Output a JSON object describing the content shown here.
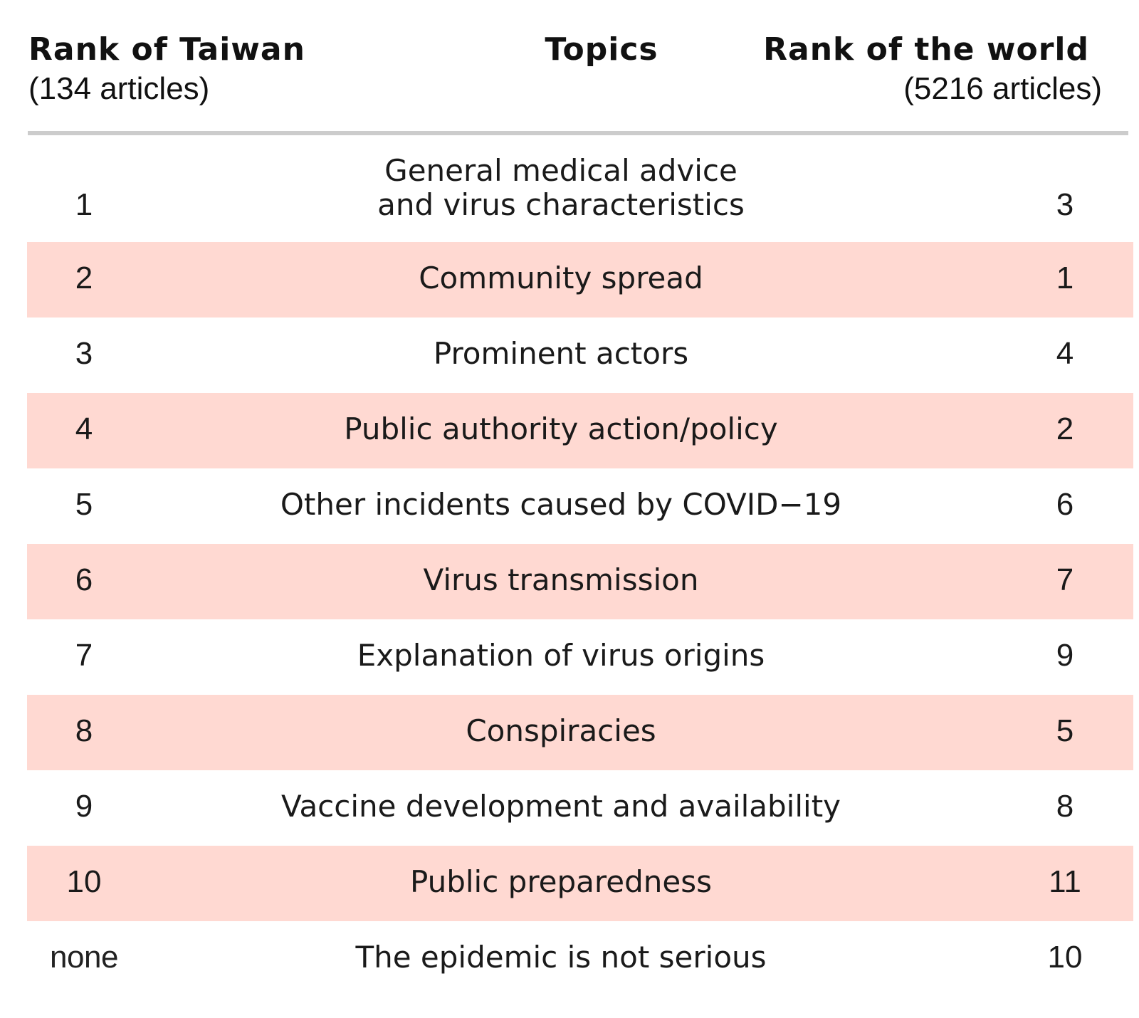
{
  "header": {
    "left_title": "Rank of Taiwan",
    "left_subtitle": "(134 articles)",
    "middle_title": "Topics",
    "right_title": "Rank of the world",
    "right_subtitle": "(5216 articles)"
  },
  "colors": {
    "shaded_row": "#ffd9d2",
    "divider": "#cccccc",
    "text": "#1a1a1a"
  },
  "chart_data": {
    "type": "table",
    "columns": [
      "Rank of Taiwan (134 articles)",
      "Topics",
      "Rank of the world (5216 articles)"
    ],
    "rows": [
      {
        "taiwan_rank": "1",
        "topic_lines": [
          "General medical advice",
          "and virus characteristics"
        ],
        "world_rank": "3"
      },
      {
        "taiwan_rank": "2",
        "topic_lines": [
          "Community spread"
        ],
        "world_rank": "1"
      },
      {
        "taiwan_rank": "3",
        "topic_lines": [
          "Prominent actors"
        ],
        "world_rank": "4"
      },
      {
        "taiwan_rank": "4",
        "topic_lines": [
          "Public authority action/policy"
        ],
        "world_rank": "2"
      },
      {
        "taiwan_rank": "5",
        "topic_lines": [
          "Other incidents caused by COVID−19"
        ],
        "world_rank": "6"
      },
      {
        "taiwan_rank": "6",
        "topic_lines": [
          "Virus transmission"
        ],
        "world_rank": "7"
      },
      {
        "taiwan_rank": "7",
        "topic_lines": [
          "Explanation of virus origins"
        ],
        "world_rank": "9"
      },
      {
        "taiwan_rank": "8",
        "topic_lines": [
          "Conspiracies"
        ],
        "world_rank": "5"
      },
      {
        "taiwan_rank": "9",
        "topic_lines": [
          "Vaccine development and availability"
        ],
        "world_rank": "8"
      },
      {
        "taiwan_rank": "10",
        "topic_lines": [
          "Public preparedness"
        ],
        "world_rank": "11"
      },
      {
        "taiwan_rank": "none",
        "topic_lines": [
          "The epidemic is not serious"
        ],
        "world_rank": "10"
      }
    ]
  }
}
